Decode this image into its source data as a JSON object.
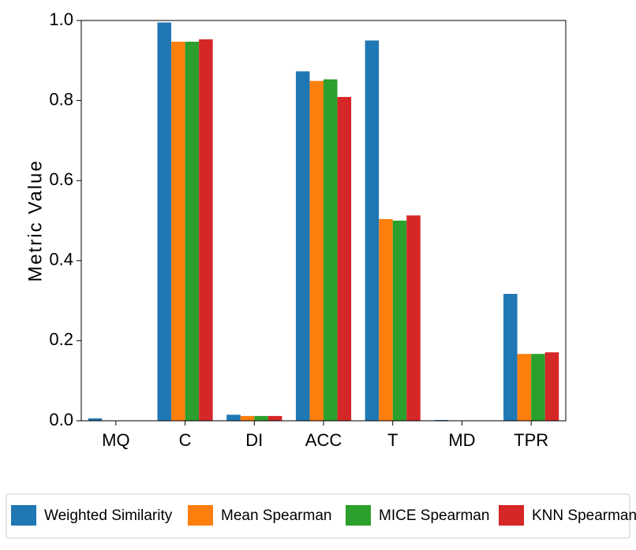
{
  "chart_data": {
    "type": "bar",
    "y_label": "Metric Value",
    "categories": [
      "MQ",
      "C",
      "DI",
      "ACC",
      "T",
      "MD",
      "TPR"
    ],
    "series": [
      {
        "name": "Weighted Similarity",
        "color": "#1f77b4",
        "values": [
          0.006,
          0.995,
          0.015,
          0.873,
          0.95,
          0.002,
          0.317
        ]
      },
      {
        "name": "Mean Spearman",
        "color": "#ff7f0e",
        "values": [
          0,
          0.947,
          0.012,
          0.849,
          0.504,
          0,
          0.167
        ]
      },
      {
        "name": "MICE Spearman",
        "color": "#2ca02c",
        "values": [
          0,
          0.947,
          0.012,
          0.853,
          0.5,
          0,
          0.167
        ]
      },
      {
        "name": "KNN Spearman",
        "color": "#d62728",
        "values": [
          0,
          0.953,
          0.012,
          0.809,
          0.513,
          0,
          0.171
        ]
      }
    ],
    "ylim": [
      0,
      1.0
    ],
    "yticks": [
      {
        "value": 0,
        "label": "0.0"
      },
      0.2,
      0.4,
      0.6,
      0.8,
      {
        "value": 1.0,
        "label": "1.0"
      }
    ],
    "legend": "bottom"
  }
}
